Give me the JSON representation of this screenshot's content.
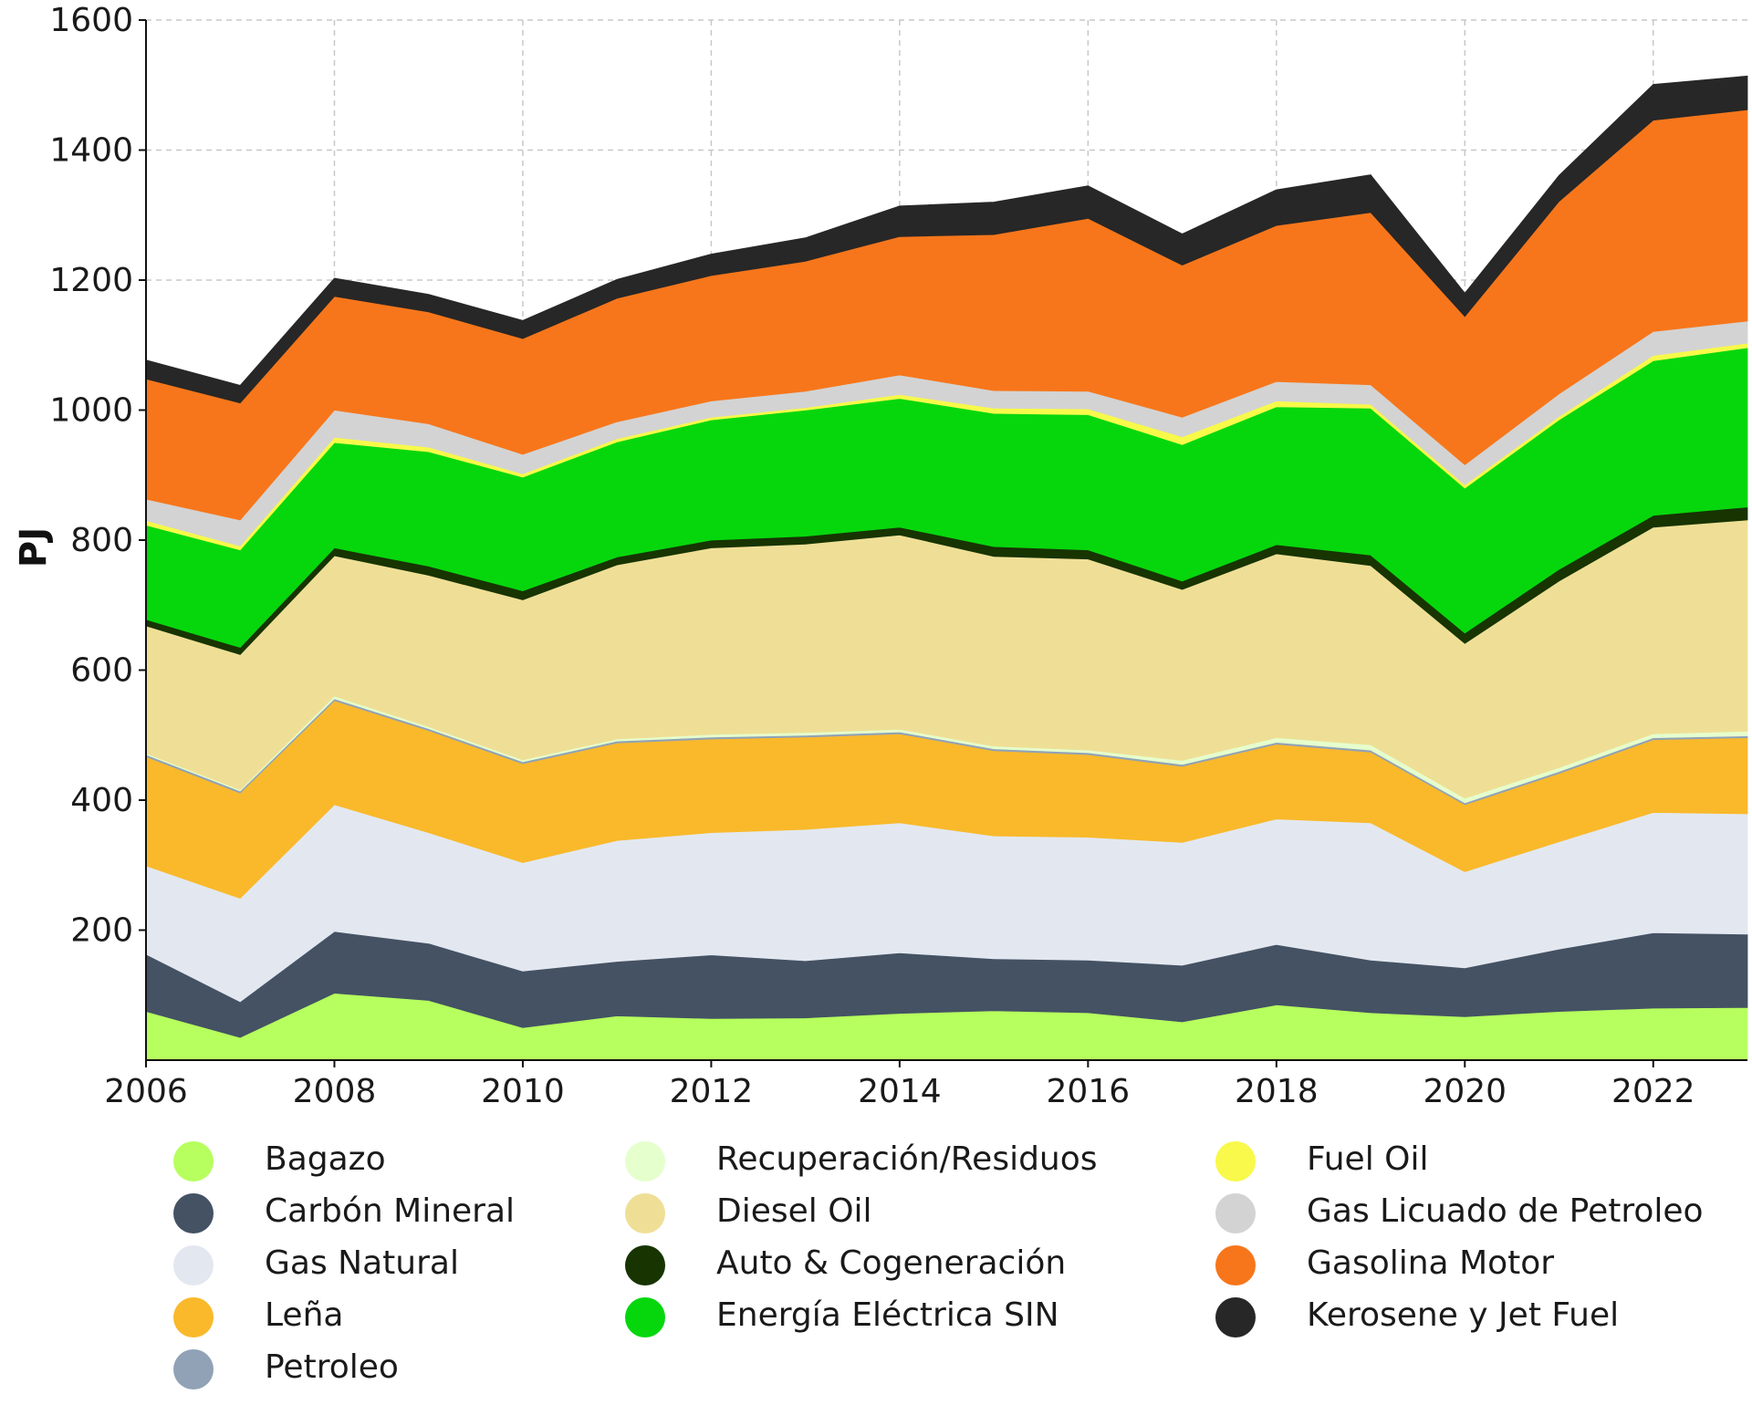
{
  "chart_data": {
    "type": "area",
    "stacked": true,
    "title": "",
    "xlabel": "",
    "ylabel": "PJ",
    "xlim": [
      2006,
      2023
    ],
    "ylim": [
      0,
      1600
    ],
    "grid": true,
    "x": [
      2006,
      2007,
      2008,
      2009,
      2010,
      2011,
      2012,
      2013,
      2014,
      2015,
      2016,
      2017,
      2018,
      2019,
      2020,
      2021,
      2022,
      2023
    ],
    "x_ticks": [
      "2006",
      "2008",
      "2010",
      "2012",
      "2014",
      "2016",
      "2018",
      "2020",
      "2022"
    ],
    "y_ticks": [
      "200",
      "400",
      "600",
      "800",
      "1000",
      "1200",
      "1400",
      "1600"
    ],
    "legend_position": "bottom",
    "series": [
      {
        "name": "Bagazo",
        "color": "#b6ff5e",
        "values": [
          75,
          35,
          103,
          92,
          50,
          68,
          64,
          65,
          72,
          76,
          73,
          59,
          85,
          73,
          67,
          75,
          80,
          81
        ]
      },
      {
        "name": "Carbón Mineral",
        "color": "#445264",
        "values": [
          88,
          55,
          95,
          88,
          87,
          84,
          98,
          88,
          93,
          80,
          81,
          87,
          93,
          81,
          75,
          96,
          116,
          113
        ]
      },
      {
        "name": "Gas Natural",
        "color": "#e3e8f0",
        "values": [
          136,
          159,
          195,
          170,
          167,
          186,
          188,
          202,
          200,
          189,
          189,
          189,
          193,
          211,
          148,
          165,
          185,
          185
        ]
      },
      {
        "name": "Leña",
        "color": "#f9b92b",
        "values": [
          168,
          162,
          160,
          157,
          152,
          150,
          144,
          142,
          137,
          131,
          127,
          117,
          115,
          109,
          103,
          105,
          112,
          117
        ]
      },
      {
        "name": "Petroleo",
        "color": "#91a2b6",
        "values": [
          3,
          3,
          3,
          3,
          3,
          3,
          3,
          3,
          3,
          3,
          3,
          3,
          3,
          3,
          3,
          3,
          3,
          3
        ]
      },
      {
        "name": "Recuperación/Residuos",
        "color": "#e5ffcd",
        "values": [
          2,
          2,
          4,
          3,
          3,
          3,
          4,
          4,
          4,
          4,
          4,
          6,
          7,
          8,
          7,
          6,
          6,
          7
        ]
      },
      {
        "name": "Diesel Oil",
        "color": "#efdf96",
        "values": [
          196,
          208,
          216,
          233,
          246,
          268,
          287,
          290,
          299,
          292,
          294,
          263,
          283,
          276,
          238,
          287,
          318,
          325
        ]
      },
      {
        "name": "Auto & Cogeneración",
        "color": "#173401",
        "values": [
          10,
          11,
          12,
          14,
          14,
          12,
          12,
          12,
          12,
          15,
          14,
          13,
          14,
          16,
          16,
          18,
          18,
          20
        ]
      },
      {
        "name": "Energía Eléctrica SIN",
        "color": "#06d70d",
        "values": [
          145,
          150,
          162,
          176,
          175,
          177,
          185,
          194,
          198,
          205,
          208,
          210,
          212,
          226,
          223,
          230,
          238,
          245
        ]
      },
      {
        "name": "Fuel Oil",
        "color": "#f8f94a",
        "values": [
          7,
          6,
          8,
          7,
          5,
          5,
          4,
          4,
          6,
          8,
          9,
          12,
          9,
          6,
          5,
          5,
          8,
          7
        ]
      },
      {
        "name": "Gas Licuado de Petroleo",
        "color": "#d3d3d3",
        "values": [
          33,
          40,
          42,
          36,
          30,
          26,
          25,
          25,
          30,
          27,
          27,
          30,
          30,
          30,
          31,
          35,
          37,
          34
        ]
      },
      {
        "name": "Gasolina Motor",
        "color": "#f7761b",
        "values": [
          185,
          180,
          175,
          172,
          178,
          190,
          193,
          200,
          213,
          240,
          266,
          234,
          240,
          265,
          228,
          296,
          325,
          325
        ]
      },
      {
        "name": "Kerosene y Jet Fuel",
        "color": "#272727",
        "values": [
          29,
          27,
          28,
          27,
          28,
          29,
          33,
          36,
          47,
          50,
          50,
          48,
          55,
          58,
          36,
          40,
          55,
          52
        ]
      }
    ]
  }
}
